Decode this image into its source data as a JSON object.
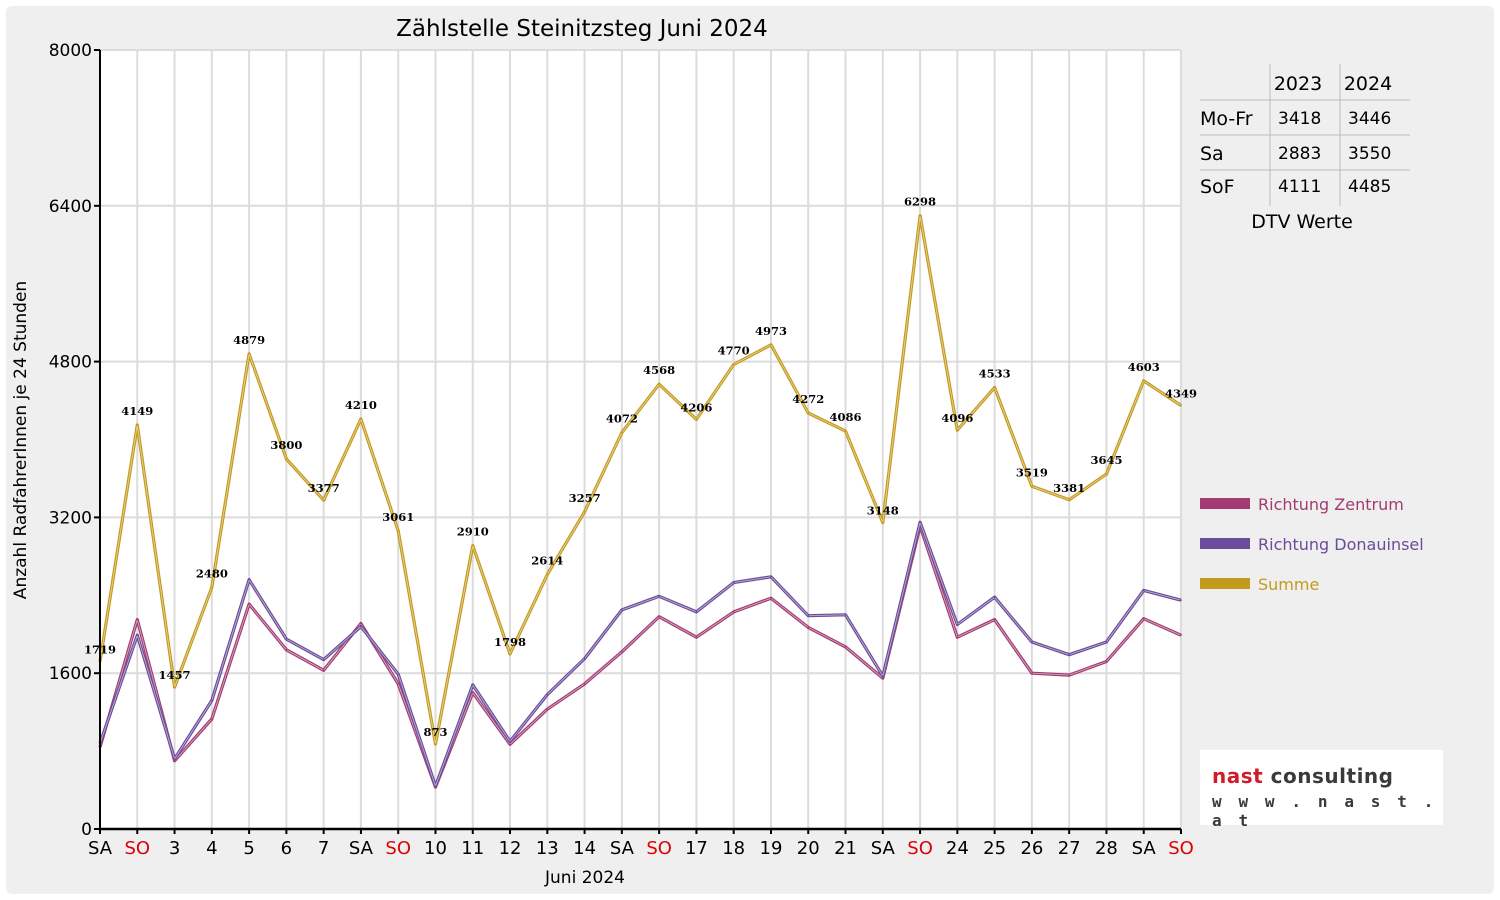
{
  "chart_data": {
    "type": "line",
    "title": "Zählstelle Steinitzsteg Juni 2024",
    "xlabel": "Juni 2024",
    "ylabel": "Anzahl RadfahrerInnen je 24 Stunden",
    "ylim": [
      0,
      8000
    ],
    "yticks": [
      "0",
      "1600",
      "3200",
      "4800",
      "6400",
      "8000"
    ],
    "categories": [
      "SA",
      "SO",
      "3",
      "4",
      "5",
      "6",
      "7",
      "SA",
      "SO",
      "10",
      "11",
      "12",
      "13",
      "14",
      "SA",
      "SO",
      "17",
      "18",
      "19",
      "20",
      "21",
      "SA",
      "SO",
      "24",
      "25",
      "26",
      "27",
      "28",
      "SA",
      "SO"
    ],
    "weekend_categories": [
      1,
      8,
      15,
      22,
      29
    ],
    "grid": true,
    "legend_position": "right",
    "series": [
      {
        "name": "Richtung Zentrum",
        "color": "#a23b72",
        "values": [
          840,
          2150,
          700,
          1130,
          2310,
          1840,
          1630,
          2110,
          1490,
          430,
          1400,
          870,
          1230,
          1490,
          1820,
          2180,
          1970,
          2230,
          2370,
          2070,
          1870,
          1550,
          3110,
          1970,
          2150,
          1600,
          1580,
          1720,
          2160,
          1990
        ]
      },
      {
        "name": "Richtung Donauinsel",
        "color": "#6b4c9a",
        "values": [
          880,
          1990,
          720,
          1320,
          2560,
          1950,
          1740,
          2080,
          1590,
          440,
          1480,
          900,
          1380,
          1750,
          2250,
          2390,
          2230,
          2530,
          2590,
          2190,
          2200,
          1570,
          3150,
          2100,
          2380,
          1920,
          1790,
          1920,
          2450,
          2350
        ]
      },
      {
        "name": "Summe",
        "color": "#c49a1c",
        "values": [
          1719,
          4149,
          1457,
          2480,
          4879,
          3800,
          3377,
          4210,
          3061,
          873,
          2910,
          1798,
          2614,
          3257,
          4072,
          4568,
          4206,
          4770,
          4973,
          4272,
          4086,
          3148,
          6298,
          4096,
          4533,
          3519,
          3381,
          3645,
          4603,
          4349
        ]
      }
    ],
    "data_labels": [
      "1719",
      "4149",
      "1457",
      "2480",
      "4879",
      "3800",
      "3377",
      "4210",
      "3061",
      "873",
      "2910",
      "1798",
      "2614",
      "3257",
      "4072",
      "4568",
      "4206",
      "4770",
      "4973",
      "4272",
      "4086",
      "3148",
      "6298",
      "4096",
      "4533",
      "3519",
      "3381",
      "3645",
      "4603",
      "4349"
    ]
  },
  "dtv_table": {
    "caption": "DTV Werte",
    "columns": [
      "2023",
      "2024"
    ],
    "rows": [
      {
        "label": "Mo-Fr",
        "v2023": "3418",
        "v2024": "3446"
      },
      {
        "label": "Sa",
        "v2023": "2883",
        "v2024": "3550"
      },
      {
        "label": "SoF",
        "v2023": "4111",
        "v2024": "4485"
      }
    ]
  },
  "logo": {
    "brand": "nast",
    "word": "consulting",
    "url": "w w w . n a s t . a t"
  }
}
